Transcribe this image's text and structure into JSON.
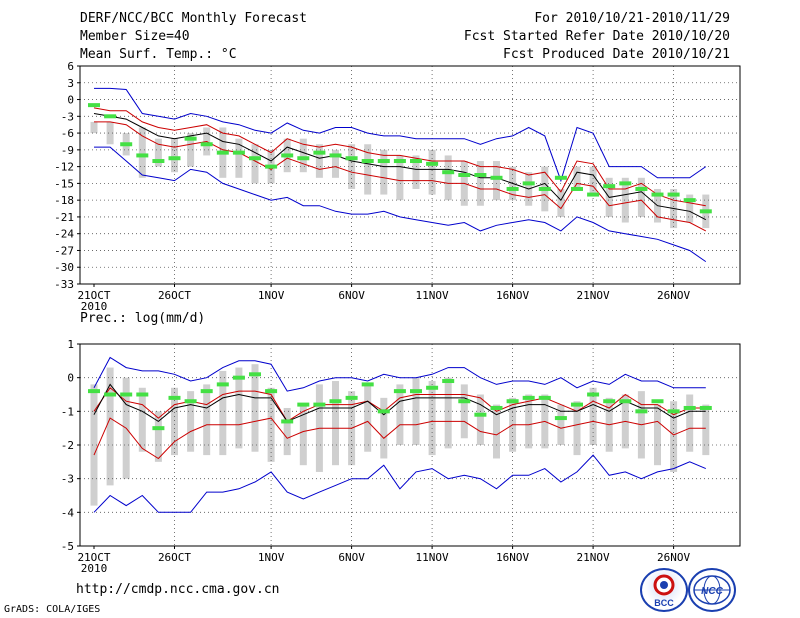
{
  "header": {
    "line1_left": "DERF/NCC/BCC Monthly Forecast",
    "line2_left": "Member Size=40",
    "line3_left": "Mean Surf. Temp.: °C",
    "line1_right": "For 2010/10/21-2010/11/29",
    "line2_right": "Fcst Started Refer Date 2010/10/20",
    "line3_right": "Fcst Produced Date 2010/10/21"
  },
  "footer": {
    "url": "http://cmdp.ncc.cma.gov.cn",
    "credit": "GrADS: COLA/IGES",
    "logo1": "BCC",
    "logo2": "NCC"
  },
  "chart_data": [
    {
      "type": "line",
      "title": "Mean Surf. Temp.: °C",
      "ylabel": "°C",
      "ylim": [
        -33,
        6
      ],
      "yticks": [
        "6",
        "3",
        "0",
        "-3",
        "-6",
        "-9",
        "-12",
        "-15",
        "-18",
        "-21",
        "-24",
        "-27",
        "-30",
        "-33"
      ],
      "xticks": [
        "21OCT",
        "26OCT",
        "1NOV",
        "6NOV",
        "11NOV",
        "16NOV",
        "21NOV",
        "26NOV"
      ],
      "xyear": "2010",
      "days": 39,
      "series": [
        {
          "name": "max",
          "color": "#0000cc",
          "values": [
            2,
            2,
            1.8,
            -2.5,
            -3,
            -3.5,
            -2.5,
            -3,
            -4,
            -4.5,
            -5.5,
            -6,
            -4.2,
            -5.5,
            -6,
            -5,
            -5,
            -6,
            -6.5,
            -6.5,
            -7,
            -7,
            -7,
            -7,
            -8,
            -7,
            -6.5,
            -5,
            -6.5,
            -14.5,
            -5,
            -6,
            -12,
            -12,
            -12,
            -14,
            -14,
            -14,
            -12
          ]
        },
        {
          "name": "upper",
          "color": "#cc0000",
          "values": [
            -1.5,
            -2,
            -2,
            -4,
            -5,
            -5.5,
            -5,
            -4.5,
            -6,
            -6.5,
            -8,
            -9.5,
            -7,
            -8,
            -8.5,
            -8,
            -8.5,
            -9.5,
            -10,
            -10,
            -10.5,
            -11,
            -11,
            -11,
            -12,
            -12,
            -12.5,
            -13.5,
            -13,
            -16.5,
            -11,
            -11.5,
            -16,
            -16,
            -15,
            -17,
            -18,
            -18.5,
            -19
          ]
        },
        {
          "name": "mean",
          "color": "#000000",
          "values": [
            -2.5,
            -3,
            -3.5,
            -5,
            -6.5,
            -7,
            -6.5,
            -6,
            -7.5,
            -8,
            -9.5,
            -11,
            -8.5,
            -9.5,
            -10.5,
            -10,
            -11,
            -11.5,
            -12,
            -12,
            -12.5,
            -12.5,
            -12.5,
            -13,
            -14,
            -14,
            -15,
            -16,
            -15,
            -18,
            -13,
            -13.5,
            -17.5,
            -17,
            -16.5,
            -19,
            -19.5,
            -20,
            -21.5
          ]
        },
        {
          "name": "lower",
          "color": "#cc0000",
          "values": [
            -4,
            -4,
            -4.5,
            -6.5,
            -8,
            -8.5,
            -8,
            -7.5,
            -9,
            -9.5,
            -11,
            -12.5,
            -10.5,
            -11.5,
            -12.5,
            -12,
            -13,
            -13.5,
            -14,
            -14.5,
            -14.5,
            -14.5,
            -15,
            -15,
            -16,
            -16,
            -17,
            -17.5,
            -17,
            -19.5,
            -15,
            -15.5,
            -19,
            -18.5,
            -18,
            -21,
            -21.5,
            -22,
            -23.5
          ]
        },
        {
          "name": "min",
          "color": "#0000cc",
          "values": [
            -8.5,
            -8.5,
            -11,
            -13.5,
            -14,
            -14.5,
            -12.5,
            -13,
            -15,
            -16,
            -17,
            -18,
            -17.5,
            -19,
            -19,
            -20,
            -20.5,
            -20.5,
            -20,
            -21,
            -21.5,
            -22,
            -22.5,
            -22,
            -23.5,
            -22.5,
            -22,
            -21.5,
            -22,
            -23.5,
            -21,
            -22,
            -23.5,
            -24,
            -24.5,
            -25,
            -26,
            -27,
            -29
          ]
        }
      ],
      "observed": [
        -1,
        -3,
        -8,
        -10,
        -11,
        -10.5,
        -7,
        -8,
        -9.5,
        -9.5,
        -10.5,
        -12,
        -10,
        -10.5,
        -9.5,
        -10,
        -10.5,
        -11,
        -11,
        -11,
        -11,
        -11.5,
        -13,
        -13.5,
        -13.5,
        -14,
        -16,
        -15,
        -16,
        -14,
        -16,
        -17,
        -15.5,
        -15,
        -16,
        -17,
        -17,
        -18,
        -20
      ],
      "spread": [
        [
          -6,
          -4
        ],
        [
          -8,
          -4
        ],
        [
          -10,
          -6
        ],
        [
          -14,
          -5
        ],
        [
          -12,
          -7
        ],
        [
          -13,
          -7
        ],
        [
          -12,
          -6
        ],
        [
          -10,
          -5
        ],
        [
          -14,
          -5
        ],
        [
          -14,
          -7
        ],
        [
          -15,
          -8
        ],
        [
          -15,
          -9
        ],
        [
          -13,
          -7
        ],
        [
          -13,
          -7
        ],
        [
          -14,
          -8
        ],
        [
          -14,
          -9
        ],
        [
          -16,
          -8
        ],
        [
          -17,
          -8
        ],
        [
          -17,
          -9
        ],
        [
          -18,
          -10
        ],
        [
          -16,
          -10
        ],
        [
          -17,
          -9
        ],
        [
          -18,
          -10
        ],
        [
          -19,
          -11
        ],
        [
          -19,
          -11
        ],
        [
          -18,
          -11
        ],
        [
          -18,
          -12
        ],
        [
          -19,
          -13
        ],
        [
          -20,
          -12
        ],
        [
          -21,
          -16
        ],
        [
          -16,
          -12
        ],
        [
          -17,
          -12
        ],
        [
          -21,
          -14
        ],
        [
          -22,
          -14
        ],
        [
          -21,
          -14
        ],
        [
          -22,
          -16
        ],
        [
          -23,
          -16
        ],
        [
          -22,
          -17
        ],
        [
          -23,
          -17
        ]
      ]
    },
    {
      "type": "line",
      "title": "Prec.: log(mm/d)",
      "ylabel": "log(mm/d)",
      "ylim": [
        -5,
        1
      ],
      "yticks": [
        "1",
        "0",
        "-1",
        "-2",
        "-3",
        "-4",
        "-5"
      ],
      "xticks": [
        "21OCT",
        "26OCT",
        "1NOV",
        "6NOV",
        "11NOV",
        "16NOV",
        "21NOV",
        "26NOV"
      ],
      "xyear": "2010",
      "days": 39,
      "series": [
        {
          "name": "max",
          "color": "#0000cc",
          "values": [
            -0.3,
            0.6,
            0.3,
            0.2,
            0.2,
            0.1,
            -0.1,
            0,
            0.3,
            0.5,
            0.5,
            0.4,
            -0.4,
            -0.3,
            -0.1,
            0,
            0,
            -0.1,
            0.1,
            0,
            0,
            0.1,
            0.3,
            0.3,
            0,
            -0.2,
            -0.1,
            -0.1,
            -0.2,
            0,
            -0.3,
            -0.1,
            -0.2,
            0.1,
            -0.1,
            -0.1,
            -0.3,
            -0.3,
            -0.3
          ]
        },
        {
          "name": "upper",
          "color": "#cc0000",
          "values": [
            -1,
            -0.3,
            -0.7,
            -0.8,
            -1.2,
            -0.8,
            -0.7,
            -0.8,
            -0.5,
            -0.4,
            -0.4,
            -0.5,
            -1.3,
            -1,
            -0.8,
            -0.8,
            -0.8,
            -0.7,
            -1,
            -0.6,
            -0.5,
            -0.5,
            -0.5,
            -0.5,
            -0.6,
            -1,
            -0.8,
            -0.7,
            -0.6,
            -0.8,
            -1,
            -0.7,
            -0.9,
            -0.5,
            -0.8,
            -0.8,
            -1.1,
            -0.9,
            -0.9
          ]
        },
        {
          "name": "mean",
          "color": "#000000",
          "values": [
            -1.1,
            -0.2,
            -0.8,
            -1,
            -1.3,
            -0.9,
            -0.8,
            -0.9,
            -0.6,
            -0.5,
            -0.6,
            -0.6,
            -1.3,
            -1.1,
            -0.9,
            -0.9,
            -0.9,
            -0.7,
            -1.1,
            -0.7,
            -0.6,
            -0.6,
            -0.6,
            -0.6,
            -0.8,
            -1.1,
            -0.9,
            -0.8,
            -0.8,
            -1,
            -1,
            -0.8,
            -1,
            -0.7,
            -0.9,
            -0.9,
            -1.2,
            -1,
            -1
          ]
        },
        {
          "name": "lower",
          "color": "#cc0000",
          "values": [
            -2.3,
            -1.2,
            -1.5,
            -2.1,
            -2.4,
            -1.9,
            -1.6,
            -1.4,
            -1.4,
            -1.4,
            -1.3,
            -1.2,
            -1.8,
            -1.6,
            -1.5,
            -1.5,
            -1.5,
            -1.3,
            -1.8,
            -1.4,
            -1.4,
            -1.3,
            -1.3,
            -1.3,
            -1.6,
            -1.7,
            -1.4,
            -1.4,
            -1.3,
            -1.5,
            -1.4,
            -1.3,
            -1.4,
            -1.3,
            -1.4,
            -1.3,
            -1.7,
            -1.5,
            -1.5
          ]
        },
        {
          "name": "min",
          "color": "#0000cc",
          "values": [
            -4,
            -3.5,
            -3.8,
            -3.5,
            -4,
            -4,
            -4,
            -3.4,
            -3.4,
            -3.3,
            -3.1,
            -2.8,
            -3.4,
            -3.6,
            -3.4,
            -3.2,
            -3,
            -3,
            -2.6,
            -3.3,
            -2.8,
            -2.7,
            -3,
            -2.9,
            -3,
            -3.3,
            -2.9,
            -2.9,
            -2.7,
            -3.1,
            -2.8,
            -2.3,
            -2.9,
            -2.8,
            -3,
            -2.8,
            -2.7,
            -2.5,
            -2.7
          ]
        }
      ],
      "observed": [
        -0.4,
        -0.5,
        -0.5,
        -0.5,
        -1.5,
        -0.6,
        -0.7,
        -0.4,
        -0.2,
        0,
        0.1,
        -0.4,
        -1.3,
        -0.8,
        -0.8,
        -0.7,
        -0.6,
        -0.2,
        -1,
        -0.4,
        -0.4,
        -0.3,
        -0.1,
        -0.7,
        -1.1,
        -0.9,
        -0.7,
        -0.6,
        -0.6,
        -1.2,
        -0.8,
        -0.5,
        -0.7,
        -0.7,
        -1,
        -0.7,
        -1,
        -0.9,
        -0.9
      ],
      "spread": [
        [
          -3.8,
          -0.2
        ],
        [
          -3.2,
          0.3
        ],
        [
          -3,
          0
        ],
        [
          -2.2,
          -0.3
        ],
        [
          -2.5,
          -1
        ],
        [
          -2.3,
          -0.3
        ],
        [
          -2.2,
          -0.4
        ],
        [
          -2.3,
          -0.2
        ],
        [
          -2.3,
          0.2
        ],
        [
          -2.1,
          0.3
        ],
        [
          -2.2,
          0.4
        ],
        [
          -2.5,
          -0.3
        ],
        [
          -2.3,
          -0.9
        ],
        [
          -2.6,
          -0.8
        ],
        [
          -2.8,
          -0.2
        ],
        [
          -2.6,
          -0.1
        ],
        [
          -2.6,
          -0.4
        ],
        [
          -2.2,
          -0.2
        ],
        [
          -2.4,
          -0.6
        ],
        [
          -2,
          -0.2
        ],
        [
          -2,
          0
        ],
        [
          -2.3,
          -0.1
        ],
        [
          -2.1,
          0
        ],
        [
          -1.8,
          -0.2
        ],
        [
          -2,
          -0.5
        ],
        [
          -2.4,
          -0.8
        ],
        [
          -2.2,
          -0.6
        ],
        [
          -2.1,
          -0.5
        ],
        [
          -2.1,
          -0.5
        ],
        [
          -2,
          -0.8
        ],
        [
          -2.3,
          -0.7
        ],
        [
          -2,
          -0.3
        ],
        [
          -2.2,
          -0.6
        ],
        [
          -2.1,
          -0.5
        ],
        [
          -2.4,
          -0.4
        ],
        [
          -2.6,
          -0.8
        ],
        [
          -2.8,
          -0.7
        ],
        [
          -2.2,
          -0.5
        ],
        [
          -2.3,
          -0.8
        ]
      ]
    }
  ]
}
